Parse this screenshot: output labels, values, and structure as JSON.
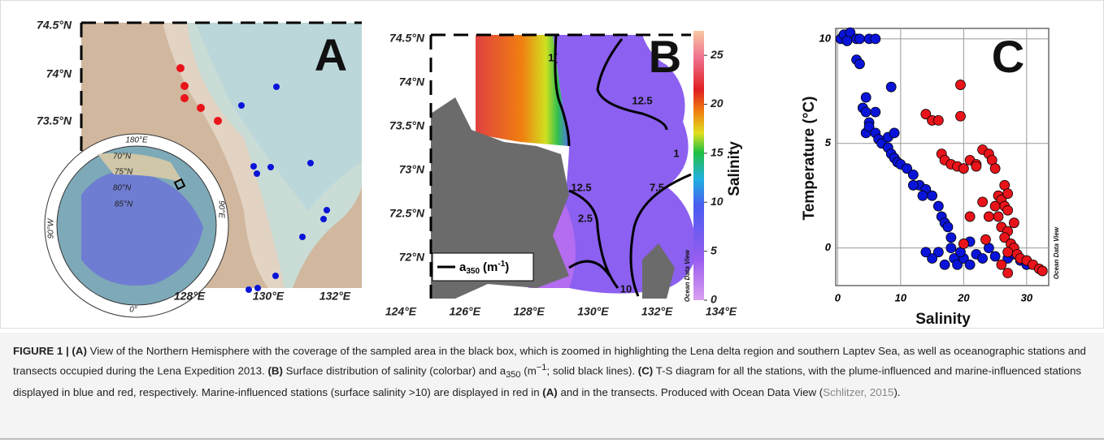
{
  "figure": {
    "panel_a": {
      "letter": "A",
      "lat_labels": [
        "74.5°N",
        "74°N",
        "73.5°N"
      ],
      "lon_labels": [
        "128°E",
        "130°E",
        "132°E"
      ],
      "inset_labels": [
        "180°E",
        "70°N",
        "75°N",
        "80°N",
        "85°N",
        "90°E",
        "90°W",
        "0°"
      ]
    },
    "panel_b": {
      "letter": "B",
      "lat_labels": [
        "74.5°N",
        "74°N",
        "73.5°N",
        "73°N",
        "72.5°N",
        "72°N"
      ],
      "lon_labels": [
        "124°E",
        "126°E",
        "128°E",
        "130°E",
        "132°E",
        "134°E"
      ],
      "contour_labels": [
        "1(",
        "12.5",
        "12.5",
        "1",
        "2.5",
        "7.5",
        "10"
      ],
      "legend": [
        "a",
        "350",
        "(m",
        "-1",
        ")"
      ],
      "colorbar": {
        "title": "Salinity",
        "range": [
          0,
          27.5
        ],
        "ticks": [
          0,
          5,
          10,
          15,
          20,
          25
        ]
      },
      "credit": "Ocean Data View"
    },
    "caption": [
      "FIGURE 1 | (A)",
      " View of the Northern Hemisphere with the coverage of the sampled area in the black box, which is zoomed in highlighting the Lena delta region and southern Laptev Sea, as well as oceanographic stations and transects occupied during the Lena Expedition 2013. ",
      "(B)",
      " Surface distribution of salinity (colorbar) and a",
      "350",
      " (m",
      "−1",
      "; solid black lines). ",
      "(C)",
      " T-S diagram for all the stations, with the plume-influenced and marine-influenced stations displayed in blue and red, respectively. Marine-influenced stations (surface salinity >10) are displayed in red in ",
      "(A)",
      " and in the transects. Produced with Ocean Data View (",
      "Schlitzer, 2015",
      ")."
    ]
  },
  "chart_data": {
    "type": "scatter",
    "letter": "C",
    "xlabel": "Salinity",
    "ylabel": "Temperature (°C)",
    "credit": "Ocean Data View",
    "xlim": [
      -0.3,
      33.5
    ],
    "ylim": [
      -1.8,
      10.5
    ],
    "xticks": [
      0,
      10,
      20,
      30
    ],
    "yticks": [
      0,
      5,
      10
    ],
    "grid": true,
    "series": [
      {
        "color": "#0a14d8",
        "x": [
          0.5,
          1,
          2,
          1.5,
          3,
          3.5,
          5,
          6,
          3,
          3.5,
          8.5,
          4.5,
          4,
          4.5,
          5,
          6,
          4.5,
          5,
          6,
          6.5,
          7,
          8,
          8.5,
          9,
          9.5,
          10,
          11,
          12,
          13,
          14,
          15,
          16,
          16.5,
          17,
          17.5,
          18,
          18,
          18.5,
          19,
          20,
          21,
          22,
          23,
          25,
          27,
          28,
          29,
          30,
          17,
          16,
          15,
          14,
          8,
          9,
          12,
          13.5,
          19.5,
          21,
          24
        ],
        "values": [
          10,
          10.2,
          10.3,
          9.9,
          10,
          10,
          10,
          10,
          9,
          8.8,
          7.7,
          7.2,
          6.7,
          6.5,
          6,
          6.5,
          5.5,
          5.8,
          5.5,
          5.2,
          5,
          4.8,
          4.5,
          4.3,
          4.1,
          4,
          3.8,
          3.5,
          3,
          2.8,
          2.5,
          2,
          1.5,
          1.2,
          1,
          0.5,
          0,
          -0.5,
          -0.8,
          -0.5,
          -0.8,
          -0.3,
          -0.5,
          -0.4,
          -0.5,
          -0.3,
          -0.6,
          -0.8,
          -0.8,
          -0.2,
          -0.5,
          -0.2,
          5.3,
          5.5,
          3,
          2.5,
          -0.2,
          0.3,
          0
        ]
      },
      {
        "color": "#e8141a",
        "x": [
          19.5,
          14,
          15,
          16,
          19.5,
          16.5,
          17,
          18,
          19,
          20,
          21,
          22,
          23,
          24,
          24.5,
          25,
          25.5,
          26,
          26.5,
          27,
          25.5,
          26,
          27,
          26.5,
          27.5,
          28,
          27,
          28.5,
          29,
          30,
          31,
          32,
          32.5,
          26,
          27,
          20,
          23.5,
          24,
          25,
          26.5,
          27,
          28,
          22,
          21,
          23
        ],
        "values": [
          7.8,
          6.4,
          6.1,
          6.1,
          6.3,
          4.5,
          4.2,
          4,
          3.9,
          3.8,
          4.2,
          4,
          4.7,
          4.5,
          4.2,
          3.8,
          2.5,
          2.3,
          2,
          1.8,
          1.5,
          1,
          0.8,
          0.5,
          0.2,
          0,
          -0.2,
          -0.3,
          -0.5,
          -0.6,
          -0.8,
          -1,
          -1.1,
          -0.8,
          -1.2,
          0.2,
          0.4,
          1.5,
          2,
          3,
          2.6,
          1.2,
          3.9,
          1.5,
          2.2
        ]
      }
    ]
  }
}
